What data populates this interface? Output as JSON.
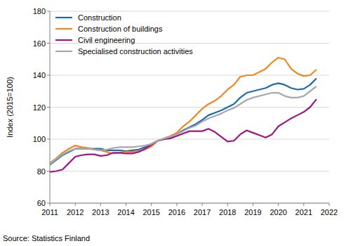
{
  "chart_data": {
    "type": "line",
    "y_label": "Index (2015=100)",
    "source": "Source: Statistics Finland",
    "x": [
      2011,
      2011.25,
      2011.5,
      2011.75,
      2012,
      2012.25,
      2012.5,
      2012.75,
      2013,
      2013.25,
      2013.5,
      2013.75,
      2014,
      2014.25,
      2014.5,
      2014.75,
      2015,
      2015.25,
      2015.5,
      2015.75,
      2016,
      2016.25,
      2016.5,
      2016.75,
      2017,
      2017.25,
      2017.5,
      2017.75,
      2018,
      2018.25,
      2018.5,
      2018.75,
      2019,
      2019.25,
      2019.5,
      2019.75,
      2020,
      2020.25,
      2020.5,
      2020.75,
      2021,
      2021.25,
      2021.5
    ],
    "series": [
      {
        "name": "Construction",
        "color": "#1b6ca8",
        "values": [
          84,
          87,
          90,
          92,
          94,
          94,
          94,
          94,
          94,
          93,
          93,
          93,
          92.5,
          93,
          93.5,
          95,
          97,
          99,
          100,
          101.5,
          103,
          105.5,
          107.5,
          109.5,
          112,
          115,
          116.5,
          118,
          120,
          122,
          126,
          129,
          130,
          131,
          132,
          134,
          135,
          134,
          132,
          131,
          131.5,
          134,
          138
        ]
      },
      {
        "name": "Construction of buildings",
        "color": "#f0861d",
        "values": [
          85,
          88,
          91.5,
          94,
          96,
          95,
          94.5,
          93.5,
          93,
          92,
          91,
          91.5,
          92,
          92,
          92.5,
          93.5,
          95.5,
          99,
          100.5,
          102,
          104,
          108,
          111,
          115,
          119,
          122,
          124,
          127,
          131,
          134,
          139,
          140,
          140,
          142,
          144,
          148,
          151,
          150,
          144,
          141,
          139.5,
          140,
          143.5
        ]
      },
      {
        "name": "Civil engineering",
        "color": "#a0148a",
        "values": [
          79.5,
          80,
          81,
          85,
          89,
          90,
          90.5,
          90.5,
          89.5,
          90,
          91.5,
          91.5,
          91,
          91,
          92,
          94,
          96.5,
          99,
          100,
          100.5,
          102,
          103.5,
          105,
          105,
          105,
          106.5,
          104.5,
          101.5,
          98.5,
          99,
          103,
          105.5,
          104,
          102.5,
          101,
          103,
          108,
          110.5,
          113,
          115,
          117,
          120,
          125
        ]
      },
      {
        "name": "Specialised construction activities",
        "color": "#a6a6b4",
        "values": [
          84.5,
          87.5,
          90.5,
          92.5,
          94,
          94,
          94,
          93.5,
          93,
          93.5,
          94.5,
          95,
          95,
          95,
          95.5,
          96,
          97,
          99,
          100.5,
          101.5,
          103,
          105,
          107,
          108.5,
          111,
          113,
          114.5,
          116,
          118,
          119.5,
          122,
          124.5,
          126,
          127,
          128,
          129,
          129,
          127,
          126,
          126,
          127,
          130,
          133
        ]
      }
    ],
    "xlim": [
      2011,
      2022
    ],
    "xticks": [
      2011,
      2012,
      2013,
      2014,
      2015,
      2016,
      2017,
      2018,
      2019,
      2020,
      2021,
      2022
    ],
    "ylim": [
      60,
      180
    ],
    "yticks": [
      60,
      80,
      100,
      120,
      140,
      160,
      180
    ],
    "grid": true,
    "legend": "upper left"
  }
}
